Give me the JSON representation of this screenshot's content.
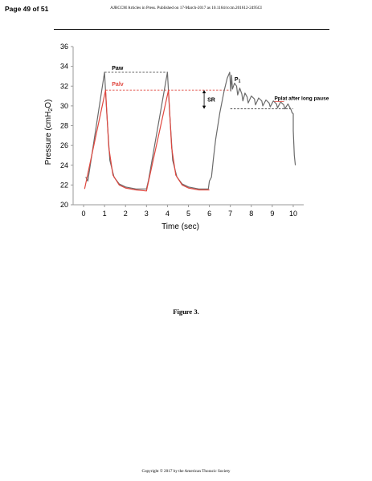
{
  "page": {
    "page_number": "Page 49 of 51",
    "header": "AJRCCM Articles in Press. Published on 17-March-2017 as 10.1164/rccm.201612-2495CI",
    "caption": "Figure 3.",
    "footer": "Copyright © 2017 by the American Thoracic Society"
  },
  "chart_data": {
    "type": "line",
    "title": "",
    "xlabel": "Time (sec)",
    "ylabel": "Pressure (cmH2O)",
    "xlim": [
      -0.5,
      10.5
    ],
    "ylim": [
      20,
      36
    ],
    "xticks": [
      0,
      1,
      2,
      3,
      4,
      5,
      6,
      7,
      8,
      9,
      10
    ],
    "yticks": [
      20,
      22,
      24,
      26,
      28,
      30,
      32,
      34,
      36
    ],
    "grid": false,
    "colors": {
      "paw": "#6b6b6b",
      "palv": "#e0473f",
      "ref_black": "#333333",
      "ref_red": "#e0473f"
    },
    "series": [
      {
        "name": "Paw",
        "x": [
          0.1,
          0.2,
          1.0,
          1.1,
          1.25,
          1.45,
          1.7,
          2.0,
          2.5,
          3.0,
          3.1,
          4.0,
          4.1,
          4.25,
          4.45,
          4.7,
          5.0,
          5.5,
          5.95,
          6.0,
          6.1,
          6.2,
          6.3,
          6.5,
          6.7,
          6.85,
          6.97,
          7.02,
          7.06,
          7.1,
          7.2,
          7.3,
          7.35,
          7.45,
          7.55,
          7.6,
          7.7,
          7.8,
          7.85,
          8.0,
          8.15,
          8.2,
          8.35,
          8.5,
          8.55,
          8.7,
          8.85,
          8.9,
          9.05,
          9.2,
          9.25,
          9.4,
          9.55,
          9.6,
          9.75,
          9.85,
          9.9,
          9.95,
          10.0,
          10.0,
          10.05,
          10.1
        ],
        "y": [
          22.8,
          22.4,
          33.4,
          29.5,
          24.5,
          22.8,
          22.1,
          21.8,
          21.6,
          21.6,
          22.5,
          33.4,
          29.5,
          24.5,
          22.8,
          22.1,
          21.8,
          21.6,
          21.6,
          22.4,
          22.8,
          24.8,
          26.6,
          29.3,
          31.5,
          32.8,
          33.4,
          31.5,
          33.1,
          31.7,
          32.3,
          32.0,
          31.1,
          31.8,
          31.2,
          30.5,
          31.3,
          30.9,
          30.3,
          31.0,
          30.7,
          30.1,
          30.8,
          30.5,
          30.0,
          30.6,
          30.3,
          29.9,
          30.5,
          30.2,
          29.8,
          30.4,
          30.1,
          29.7,
          30.2,
          29.8,
          29.6,
          29.3,
          29.2,
          27.5,
          25.0,
          24.0
        ]
      },
      {
        "name": "Palv",
        "x": [
          0.05,
          1.05,
          1.2,
          1.4,
          1.7,
          2.0,
          2.5,
          3.0,
          4.05,
          4.2,
          4.4,
          4.7,
          5.0,
          5.5,
          6.0
        ],
        "y": [
          21.6,
          31.6,
          25.8,
          23.0,
          22.0,
          21.7,
          21.5,
          21.4,
          31.6,
          25.8,
          23.0,
          22.0,
          21.7,
          21.5,
          21.5
        ]
      }
    ],
    "reference_lines": [
      {
        "label": "Paw",
        "y": 33.4,
        "x": [
          1.0,
          4.0
        ],
        "color": "#333333",
        "style": "dashed"
      },
      {
        "label": "Palv",
        "y": 31.6,
        "x": [
          1.05,
          7.0
        ],
        "color": "#e0473f",
        "style": "dashed"
      },
      {
        "label": "Pplat after long pause",
        "y": 29.7,
        "x": [
          7.0,
          10.0
        ],
        "color": "#333333",
        "style": "dashed"
      }
    ],
    "annotations": [
      {
        "text": "SR",
        "type": "bracket",
        "x": 5.75,
        "y_from": 29.7,
        "y_to": 31.6
      },
      {
        "text": "P1",
        "type": "label",
        "x": 7.2,
        "y": 32.5
      },
      {
        "text": "Pplat after long pause",
        "type": "label",
        "x": 9.1,
        "y": 30.6
      }
    ]
  }
}
